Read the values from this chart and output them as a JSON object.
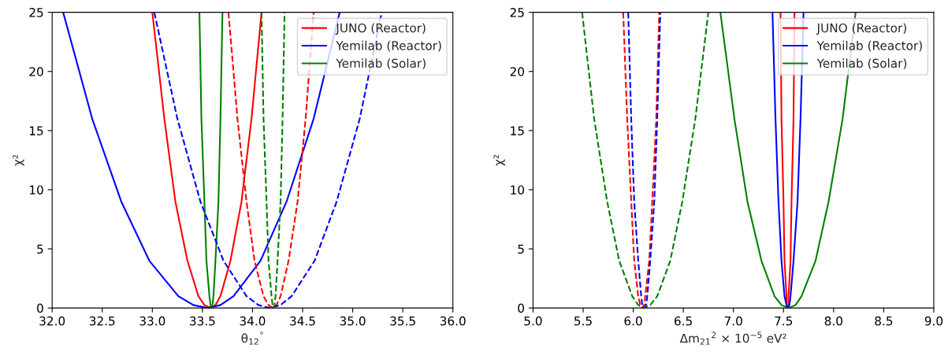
{
  "chart_data": [
    {
      "type": "line",
      "xlabel": "θ$_{12}$$^{°}$",
      "ylabel": "χ²",
      "xlim": [
        32.0,
        36.0
      ],
      "xticks": [
        {
          "value": 32,
          "label": "32.0"
        },
        32.5,
        {
          "value": 33,
          "label": "33.0"
        },
        33.5,
        {
          "value": 34,
          "label": "34.0"
        },
        34.5,
        {
          "value": 35,
          "label": "35.0"
        },
        35.5,
        {
          "value": 36,
          "label": "36.0"
        }
      ],
      "ylim": [
        0,
        25
      ],
      "yticks": [
        0,
        5,
        10,
        15,
        20,
        25
      ],
      "grid": false,
      "legend": "top right",
      "marker": "none",
      "series": [
        {
          "name": "JUNO (Reactor)",
          "color": "#ff0000",
          "line_style": "solid",
          "x": [
            33.0,
            33.12,
            33.23,
            33.35,
            33.46,
            33.52,
            33.58,
            33.63,
            33.68,
            33.78,
            33.89,
            33.99,
            34.09
          ],
          "values": [
            25,
            16,
            9,
            4,
            1,
            0.25,
            0,
            0.25,
            1,
            4,
            9,
            16,
            25
          ]
        },
        {
          "name": "Yemilab (Reactor)",
          "color": "#0000ff",
          "line_style": "solid",
          "x": [
            32.11,
            32.4,
            32.69,
            32.97,
            33.26,
            33.41,
            33.55,
            33.68,
            33.81,
            34.08,
            34.34,
            34.61,
            34.87
          ],
          "values": [
            25,
            16,
            9,
            4,
            1,
            0.25,
            0,
            0.25,
            1,
            4,
            9,
            16,
            25
          ]
        },
        {
          "name": "Yemilab (Solar)",
          "color": "#008000",
          "line_style": "solid",
          "x": [
            33.47,
            33.49,
            33.52,
            33.54,
            33.57,
            33.58,
            33.59,
            33.6,
            33.61,
            33.63,
            33.66,
            33.68,
            33.7
          ],
          "values": [
            25,
            16,
            9,
            4,
            1,
            0.25,
            0,
            0.25,
            1,
            4,
            9,
            16,
            25
          ]
        },
        {
          "color": "#ff0000",
          "line_style": "dashed",
          "x": [
            33.76,
            33.85,
            33.94,
            34.02,
            34.11,
            34.16,
            34.2,
            34.24,
            34.28,
            34.36,
            34.45,
            34.53,
            34.61
          ],
          "values": [
            25,
            16,
            9,
            4,
            1,
            0.25,
            0,
            0.25,
            1,
            4,
            9,
            16,
            25
          ]
        },
        {
          "color": "#0000ff",
          "line_style": "dashed",
          "x": [
            33.02,
            33.25,
            33.48,
            33.71,
            33.94,
            34.06,
            34.17,
            34.28,
            34.39,
            34.62,
            34.84,
            35.07,
            35.29
          ],
          "values": [
            25,
            16,
            9,
            4,
            1,
            0.25,
            0,
            0.25,
            1,
            4,
            9,
            16,
            25
          ]
        },
        {
          "color": "#008000",
          "line_style": "dashed",
          "x": [
            34.09,
            34.11,
            34.14,
            34.16,
            34.19,
            34.2,
            34.21,
            34.22,
            34.23,
            34.25,
            34.28,
            34.3,
            34.32
          ],
          "values": [
            25,
            16,
            9,
            4,
            1,
            0.25,
            0,
            0.25,
            1,
            4,
            9,
            16,
            25
          ]
        }
      ]
    },
    {
      "type": "line",
      "xlabel": "Δm$_{21}$$^{2}$ × 10$^{−5}$ eV²",
      "ylabel": "χ²",
      "xlim": [
        5.0,
        9.0
      ],
      "xticks": [
        {
          "value": 5,
          "label": "5.0"
        },
        5.5,
        {
          "value": 6,
          "label": "6.0"
        },
        6.5,
        {
          "value": 7,
          "label": "7.0"
        },
        7.5,
        {
          "value": 8,
          "label": "8.0"
        },
        8.5,
        {
          "value": 9,
          "label": "9.0"
        }
      ],
      "ylim": [
        0,
        25
      ],
      "yticks": [
        0,
        5,
        10,
        15,
        20,
        25
      ],
      "grid": false,
      "legend": "top right",
      "marker": "none",
      "series": [
        {
          "name": "JUNO (Reactor)",
          "color": "#ff0000",
          "line_style": "solid",
          "x": [
            7.47,
            7.48,
            7.5,
            7.51,
            7.53,
            7.53,
            7.54,
            7.55,
            7.55,
            7.57,
            7.58,
            7.6,
            7.61
          ],
          "values": [
            25,
            16,
            9,
            4,
            1,
            0.25,
            0,
            0.25,
            1,
            4,
            9,
            16,
            25
          ]
        },
        {
          "name": "Yemilab (Reactor)",
          "color": "#0000ff",
          "line_style": "solid",
          "x": [
            7.39,
            7.42,
            7.45,
            7.48,
            7.51,
            7.53,
            7.54,
            7.56,
            7.57,
            7.6,
            7.64,
            7.67,
            7.7
          ],
          "values": [
            25,
            16,
            9,
            4,
            1,
            0.25,
            0,
            0.25,
            1,
            4,
            9,
            16,
            25
          ]
        },
        {
          "name": "Yemilab (Solar)",
          "color": "#008000",
          "line_style": "solid",
          "x": [
            6.87,
            7.01,
            7.14,
            7.28,
            7.41,
            7.48,
            7.55,
            7.62,
            7.68,
            7.82,
            7.95,
            8.09,
            8.22
          ],
          "values": [
            25,
            16,
            9,
            4,
            1,
            0.25,
            0,
            0.25,
            1,
            4,
            9,
            16,
            25
          ]
        },
        {
          "color": "#ff0000",
          "line_style": "dashed",
          "x": [
            5.9,
            5.94,
            5.98,
            6.01,
            6.05,
            6.07,
            6.09,
            6.11,
            6.12,
            6.16,
            6.19,
            6.23,
            6.26
          ],
          "values": [
            25,
            16,
            9,
            4,
            1,
            0.25,
            0,
            0.25,
            1,
            4,
            9,
            16,
            25
          ]
        },
        {
          "color": "#0000ff",
          "line_style": "dashed",
          "x": [
            5.95,
            5.98,
            6.01,
            6.05,
            6.08,
            6.09,
            6.11,
            6.13,
            6.14,
            6.17,
            6.21,
            6.24,
            6.27
          ],
          "values": [
            25,
            16,
            9,
            4,
            1,
            0.25,
            0,
            0.25,
            1,
            4,
            9,
            16,
            25
          ]
        },
        {
          "color": "#008000",
          "line_style": "dashed",
          "x": [
            5.49,
            5.61,
            5.74,
            5.86,
            5.99,
            6.05,
            6.11,
            6.17,
            6.24,
            6.37,
            6.49,
            6.62,
            6.75
          ],
          "values": [
            25,
            16,
            9,
            4,
            1,
            0.25,
            0,
            0.25,
            1,
            4,
            9,
            16,
            25
          ]
        }
      ]
    }
  ]
}
